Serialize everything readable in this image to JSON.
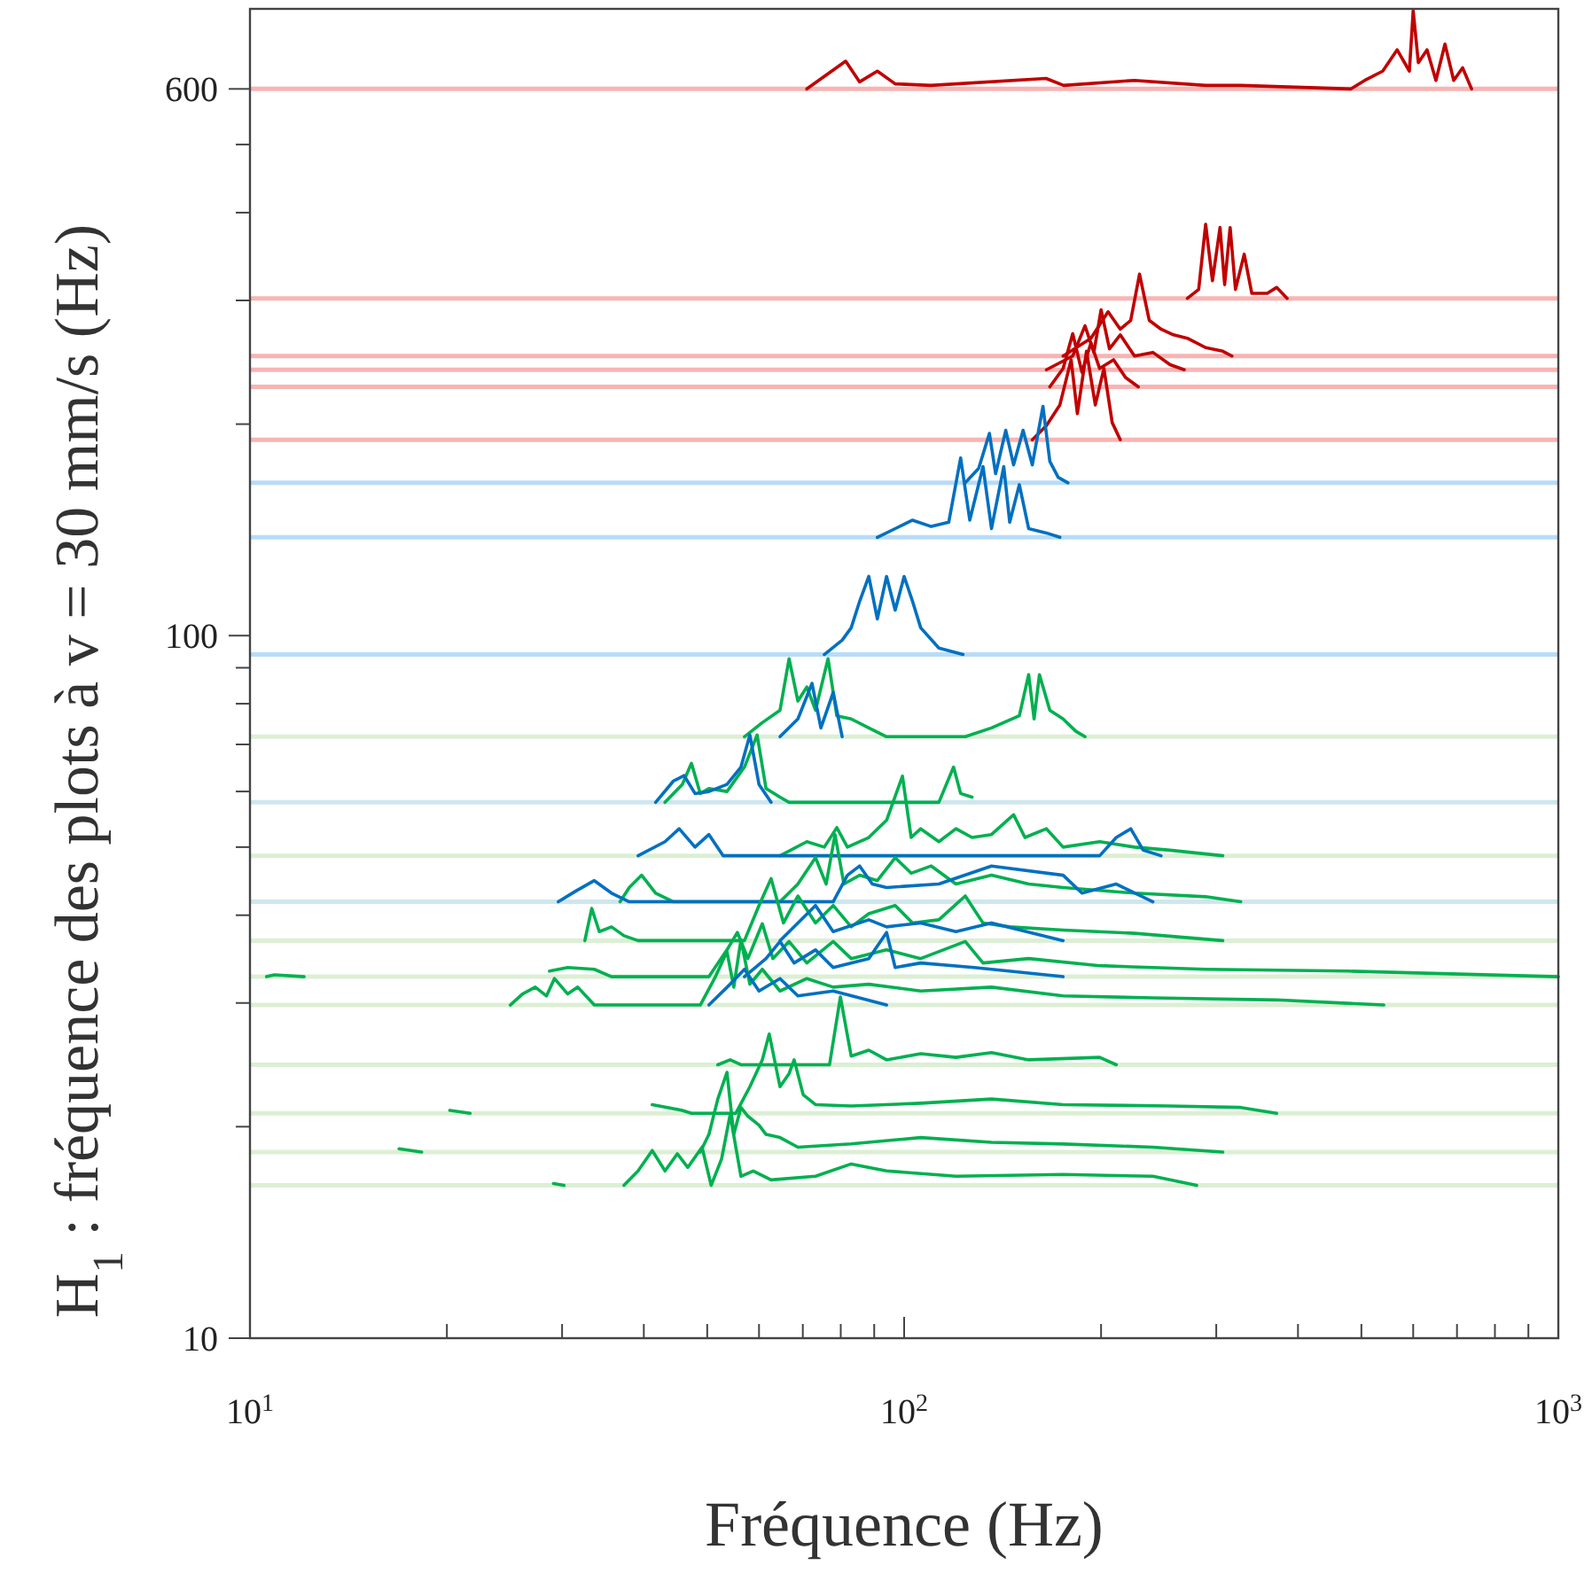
{
  "chart_data": {
    "type": "line",
    "xlabel": "Fréquence (Hz)",
    "ylabel": "H$_{1}$ : fréquence des plots à v = 30 mm/s (Hz)",
    "log": "xy",
    "xlim": [
      10,
      1000
    ],
    "ylim": [
      10,
      780
    ],
    "xticks": [
      {
        "value": 10,
        "label": "10$^{1}$"
      },
      {
        "value": 20,
        "label": null
      },
      {
        "value": 30,
        "label": null
      },
      {
        "value": 40,
        "label": null
      },
      {
        "value": 50,
        "label": null
      },
      {
        "value": 60,
        "label": null
      },
      {
        "value": 70,
        "label": null
      },
      {
        "value": 80,
        "label": null
      },
      {
        "value": 90,
        "label": null
      },
      {
        "value": 100,
        "label": "10$^{2}$"
      },
      {
        "value": 200,
        "label": null
      },
      {
        "value": 300,
        "label": null
      },
      {
        "value": 400,
        "label": null
      },
      {
        "value": 500,
        "label": null
      },
      {
        "value": 600,
        "label": null
      },
      {
        "value": 700,
        "label": null
      },
      {
        "value": 800,
        "label": null
      },
      {
        "value": 900,
        "label": null
      },
      {
        "value": 1000,
        "label": "10$^{3}$"
      }
    ],
    "yticks": [
      10,
      {
        "value": 20,
        "label": null
      },
      {
        "value": 30,
        "label": null
      },
      {
        "value": 40,
        "label": null
      },
      {
        "value": 50,
        "label": null
      },
      {
        "value": 60,
        "label": null
      },
      {
        "value": 70,
        "label": null
      },
      {
        "value": 80,
        "label": null
      },
      {
        "value": 90,
        "label": null
      },
      100,
      {
        "value": 200,
        "label": null
      },
      {
        "value": 300,
        "label": null
      },
      {
        "value": 400,
        "label": null
      },
      {
        "value": 500,
        "label": null
      },
      600
    ],
    "ref_lines": [
      {
        "axis": "y",
        "value": 600,
        "color": "#f8b4b4"
      },
      {
        "axis": "y",
        "value": 302,
        "color": "#f8b4b4"
      },
      {
        "axis": "y",
        "value": 250,
        "color": "#f8b4b4"
      },
      {
        "axis": "y",
        "value": 239,
        "color": "#f8b4b4"
      },
      {
        "axis": "y",
        "value": 226,
        "color": "#f8b4b4"
      },
      {
        "axis": "y",
        "value": 190,
        "color": "#f8b4b4"
      },
      {
        "axis": "y",
        "value": 165,
        "color": "#b8dcf8"
      },
      {
        "axis": "y",
        "value": 138,
        "color": "#b8dcf8"
      },
      {
        "axis": "y",
        "value": 94,
        "color": "#b8dcf8"
      },
      {
        "axis": "y",
        "value": 71.8,
        "color": "#dcefd4"
      },
      {
        "axis": "y",
        "value": 57.9,
        "color": "#cfe6ee"
      },
      {
        "axis": "y",
        "value": 48.6,
        "color": "#dcefd4"
      },
      {
        "axis": "y",
        "value": 41.8,
        "color": "#cfe6ee"
      },
      {
        "axis": "y",
        "value": 36.8,
        "color": "#dcefd4"
      },
      {
        "axis": "y",
        "value": 32.7,
        "color": "#dcefd4"
      },
      {
        "axis": "y",
        "value": 29.8,
        "color": "#dcefd4"
      },
      {
        "axis": "y",
        "value": 24.5,
        "color": "#dcefd4"
      },
      {
        "axis": "y",
        "value": 20.9,
        "color": "#dcefd4"
      },
      {
        "axis": "y",
        "value": 18.4,
        "color": "#dcefd4"
      },
      {
        "axis": "y",
        "value": 16.5,
        "color": "#dcefd4"
      }
    ],
    "series": [
      {
        "color": "#c00000",
        "x": [
          71.0,
          81.4,
          85.5,
          91.0,
          96.9,
          109.8,
          164.8,
          175.3,
          225,
          289,
          327,
          482,
          506,
          539,
          567,
          592,
          600,
          611,
          630,
          650,
          671,
          692,
          714,
          737
        ],
        "values": [
          600,
          657,
          614,
          636,
          610,
          607,
          621,
          607,
          617,
          607,
          607,
          600,
          617,
          636,
          682,
          636,
          775,
          654,
          682,
          617,
          695,
          617,
          643,
          600
        ]
      },
      {
        "color": "#c00000",
        "x": [
          271,
          282,
          289,
          296,
          304,
          309,
          315,
          321,
          331,
          340,
          359,
          371,
          385
        ],
        "values": [
          302,
          311,
          385,
          320,
          381,
          316,
          381,
          311,
          349,
          307,
          307,
          313,
          302
        ]
      },
      {
        "color": "#c00000",
        "x": [
          175,
          193,
          205,
          214,
          222,
          229,
          237,
          247,
          258,
          271,
          289,
          307,
          317
        ],
        "values": [
          250,
          265,
          289,
          273,
          281,
          327,
          281,
          273,
          268,
          265,
          257,
          254,
          250
        ]
      },
      {
        "color": "#c00000",
        "x": [
          165,
          181,
          189,
          195,
          200,
          206,
          214,
          225,
          240,
          255,
          268
        ],
        "values": [
          239,
          250,
          276,
          253,
          291,
          256,
          268,
          250,
          253,
          243,
          239
        ]
      },
      {
        "color": "#c00000",
        "x": [
          167,
          175,
          181,
          187,
          193,
          199,
          209,
          218,
          228
        ],
        "values": [
          226,
          240,
          269,
          237,
          261,
          240,
          247,
          233,
          226
        ]
      },
      {
        "color": "#c00000",
        "x": [
          157,
          165,
          173,
          180,
          184,
          190,
          196,
          202,
          208,
          214
        ],
        "values": [
          190,
          199,
          213,
          247,
          207,
          254,
          213,
          240,
          201,
          190
        ]
      },
      {
        "color": "#0070c0",
        "x": [
          124,
          130,
          135,
          138,
          143,
          147,
          152,
          157,
          163,
          167,
          172,
          178
        ],
        "values": [
          165,
          173,
          194,
          170,
          196,
          175,
          196,
          175,
          212,
          177,
          168,
          165
        ]
      },
      {
        "color": "#0070c0",
        "x": [
          91.0,
          96.9,
          103,
          110,
          117,
          122,
          126,
          132,
          136,
          142,
          145,
          150,
          155,
          165,
          173
        ],
        "values": [
          138,
          142,
          146,
          143,
          145,
          179,
          146,
          174,
          142,
          174,
          145,
          164,
          142,
          140,
          138
        ]
      },
      {
        "color": "#0070c0",
        "x": [
          75.5,
          80.4,
          83.0,
          85.5,
          88.3,
          91.0,
          94.0,
          96.9,
          100,
          103,
          106,
          113,
          123
        ],
        "values": [
          94,
          98.5,
          102.6,
          111.9,
          121.4,
          105.6,
          121.4,
          108.7,
          121.4,
          111.9,
          102.6,
          96.0,
          94
        ]
      },
      {
        "color": "#00b050",
        "x": [
          57.0,
          60.7,
          64.6,
          66.7,
          68.8,
          71.0,
          73.2,
          76.5,
          78.9,
          83.0,
          88.3,
          94.0,
          124,
          136,
          150,
          155,
          158,
          161,
          167,
          175,
          183,
          189
        ],
        "values": [
          71.8,
          75.2,
          78.3,
          92.7,
          80.7,
          84.5,
          78.3,
          92.7,
          76.9,
          76.1,
          73.9,
          71.8,
          71.8,
          73.9,
          76.9,
          88.0,
          76.1,
          88.0,
          78.3,
          76.1,
          73.1,
          71.8
        ]
      },
      {
        "color": "#0070c0",
        "x": [
          64.6,
          68.8,
          72.3,
          74.6,
          77.9,
          80.4
        ],
        "values": [
          71.8,
          76.1,
          85.5,
          73.9,
          83.0,
          71.8
        ]
      },
      {
        "color": "#00b050",
        "x": [
          43.1,
          45.8,
          47.3,
          48.8,
          50.3,
          53.6,
          57.0,
          59.6,
          61.5,
          64.6,
          66.7,
          113,
          119,
          122,
          127
        ],
        "values": [
          57.9,
          61.4,
          65.8,
          59.6,
          60.6,
          60.0,
          65.0,
          72.2,
          60.6,
          58.9,
          57.9,
          57.9,
          65.0,
          59.6,
          58.9
        ]
      },
      {
        "color": "#0070c0",
        "x": [
          41.7,
          44.4,
          46.1,
          47.9,
          50.3,
          53.6,
          56.3,
          58.1,
          60.0,
          62.6
        ],
        "values": [
          57.9,
          62.1,
          63.2,
          59.6,
          60.0,
          61.4,
          65.0,
          72.2,
          61.4,
          57.9
        ]
      },
      {
        "color": "#00b050",
        "x": [
          64.6,
          71.0,
          75.5,
          78.9,
          81.9,
          88.3,
          94.0,
          99.4,
          102.5,
          106,
          113,
          120,
          127,
          136,
          147,
          153,
          165,
          175,
          199,
          225,
          255,
          307
        ],
        "values": [
          48.6,
          50.9,
          50.0,
          53.3,
          50.0,
          51.6,
          54.6,
          63.1,
          51.6,
          53.1,
          50.9,
          53.1,
          51.6,
          52.1,
          55.6,
          51.6,
          53.1,
          50.0,
          50.9,
          50.0,
          49.5,
          48.6
        ]
      },
      {
        "color": "#0070c0",
        "x": [
          39.2,
          43.1,
          45.3,
          47.9,
          50.3,
          52.9,
          199,
          211,
          222,
          232,
          247
        ],
        "values": [
          48.6,
          50.9,
          53.1,
          50.0,
          52.1,
          48.6,
          48.6,
          51.6,
          53.1,
          49.5,
          48.6
        ]
      },
      {
        "color": "#00b050",
        "x": [
          36.8,
          38.0,
          39.7,
          41.7,
          44.4,
          64.6,
          68.8,
          73.2,
          76.0,
          78.4,
          80.9,
          85.5,
          91.0,
          96.9,
          102.5,
          110,
          120,
          136,
          155,
          175,
          225,
          289,
          327
        ],
        "values": [
          41.8,
          43.8,
          45.6,
          43.0,
          41.8,
          41.8,
          44.3,
          48.3,
          44.3,
          52.1,
          44.3,
          45.6,
          44.8,
          48.3,
          45.9,
          47.0,
          44.3,
          45.6,
          44.3,
          43.8,
          43.0,
          42.5,
          41.8
        ]
      },
      {
        "color": "#0070c0",
        "x": [
          29.6,
          31.5,
          33.6,
          35.7,
          38.0,
          77.9,
          81.9,
          85.5,
          89.4,
          94.0,
          113,
          136,
          175,
          187,
          211,
          240
        ],
        "values": [
          41.8,
          43.3,
          44.8,
          43.0,
          41.8,
          41.8,
          45.6,
          47.0,
          44.3,
          43.8,
          44.3,
          47.0,
          45.6,
          43.0,
          44.3,
          41.8
        ]
      },
      {
        "color": "#00b050",
        "x": [
          32.5,
          33.3,
          34.2,
          35.7,
          37.3,
          39.2,
          57.0,
          60.0,
          62.6,
          65.4,
          68.8,
          73.2,
          77.9,
          83.0,
          88.3,
          96.9,
          103,
          113,
          124,
          132,
          145,
          175,
          225,
          307
        ],
        "values": [
          36.8,
          40.9,
          37.9,
          38.5,
          37.4,
          36.8,
          36.8,
          41.3,
          45.1,
          39.0,
          42.6,
          39.0,
          41.3,
          38.5,
          40.2,
          41.3,
          39.0,
          39.4,
          42.6,
          39.0,
          38.5,
          38.1,
          37.7,
          36.8
        ]
      },
      {
        "color": "#0070c0",
        "x": [
          64.6,
          68.8,
          73.2,
          77.9,
          88.3,
          94.0,
          106,
          120,
          136,
          175
        ],
        "values": [
          36.8,
          39.0,
          41.3,
          37.9,
          39.4,
          38.5,
          39.0,
          37.9,
          39.0,
          36.8
        ]
      },
      {
        "color": "#00b050",
        "x": [
          10.6,
          10.9,
          12.1,
          null,
          28.7,
          30.6,
          33.6,
          35.7,
          50.3,
          53.6,
          55.6,
          57.7,
          60.7,
          63.0,
          66.7,
          71.0,
          77.9,
          83.0,
          94.0,
          106,
          124,
          132,
          155,
          199,
          289,
          477,
          1000
        ],
        "values": [
          32.7,
          32.9,
          32.7,
          null,
          33.3,
          33.7,
          33.5,
          32.7,
          32.7,
          35.7,
          37.8,
          34.7,
          38.9,
          34.7,
          36.7,
          34.2,
          36.7,
          34.7,
          35.7,
          34.7,
          36.7,
          34.2,
          34.7,
          33.9,
          33.5,
          33.3,
          32.7
        ]
      },
      {
        "color": "#0070c0",
        "x": [
          57.0,
          61.5,
          64.6,
          67.9,
          73.2,
          77.9,
          88.3,
          94.0,
          96.9,
          106,
          128,
          175
        ],
        "values": [
          32.7,
          34.7,
          36.7,
          34.2,
          35.7,
          33.7,
          34.7,
          37.8,
          33.7,
          34.2,
          33.7,
          32.7
        ]
      },
      {
        "color": "#00b050",
        "x": [
          25.0,
          26.1,
          27.3,
          28.4,
          29.2,
          30.6,
          31.7,
          33.6,
          48.8,
          51.3,
          53.6,
          54.9,
          56.3,
          58.1,
          60.7,
          64.6,
          71.0,
          77.9,
          88.3,
          106,
          136,
          175,
          240,
          371,
          541
        ],
        "values": [
          29.8,
          30.9,
          31.6,
          30.7,
          32.5,
          30.9,
          31.6,
          29.8,
          29.8,
          32.5,
          35.5,
          31.6,
          36.9,
          31.9,
          33.5,
          31.2,
          32.5,
          31.6,
          31.9,
          31.2,
          31.6,
          30.7,
          30.5,
          30.3,
          29.8
        ]
      },
      {
        "color": "#0070c0",
        "x": [
          50.3,
          54.2,
          57.0,
          60.0,
          64.6,
          68.8,
          77.9,
          94.0
        ],
        "values": [
          29.8,
          31.9,
          33.5,
          31.2,
          32.5,
          30.7,
          31.2,
          29.8
        ]
      },
      {
        "color": "#00b050",
        "x": [
          51.9,
          54.2,
          56.3,
          76.9,
          79.9,
          83.0,
          88.3,
          94.0,
          106,
          120,
          136,
          155,
          199,
          211
        ],
        "values": [
          24.5,
          24.9,
          24.5,
          24.5,
          30.6,
          25.2,
          25.7,
          24.9,
          25.4,
          25.1,
          25.5,
          24.9,
          25.1,
          24.5
        ]
      },
      {
        "color": "#00b050",
        "x": [
          20.2,
          21.7,
          null,
          41.2,
          45.8,
          47.3,
          55.3,
          58.1,
          60.7,
          62.2,
          64.6,
          66.7,
          67.9,
          70.1,
          73.2,
          83.0,
          106,
          136,
          175,
          255,
          327,
          371
        ],
        "values": [
          21.1,
          20.9,
          null,
          21.5,
          21.1,
          20.9,
          20.9,
          22.8,
          24.9,
          27.1,
          22.8,
          23.8,
          24.9,
          22.2,
          21.5,
          21.4,
          21.6,
          21.9,
          21.5,
          21.4,
          21.3,
          20.9
        ]
      },
      {
        "color": "#00b050",
        "x": [
          16.9,
          18.3,
          null,
          48.8,
          50.3,
          51.9,
          53.6,
          54.9,
          56.3,
          57.7,
          60.0,
          61.5,
          64.6,
          68.8,
          83.0,
          106,
          136,
          175,
          240,
          307
        ],
        "values": [
          18.6,
          18.4,
          null,
          18.4,
          19.5,
          21.9,
          23.9,
          19.5,
          21.3,
          20.7,
          20.1,
          19.5,
          19.3,
          18.7,
          18.9,
          19.3,
          19.0,
          18.9,
          18.7,
          18.4
        ]
      },
      {
        "color": "#00b050",
        "x": [
          29.1,
          30.2,
          null,
          37.3,
          39.2,
          41.2,
          43.1,
          45.0,
          46.7,
          49.1,
          50.7,
          52.6,
          54.2,
          56.3,
          58.8,
          62.6,
          73.2,
          83.0,
          94.0,
          120,
          175,
          240,
          280
        ],
        "values": [
          16.6,
          16.5,
          null,
          16.5,
          17.3,
          18.5,
          17.3,
          18.3,
          17.5,
          18.7,
          16.5,
          18.0,
          20.8,
          17.0,
          17.3,
          16.8,
          17.0,
          17.7,
          17.3,
          17.0,
          17.1,
          17.0,
          16.5
        ]
      }
    ]
  }
}
